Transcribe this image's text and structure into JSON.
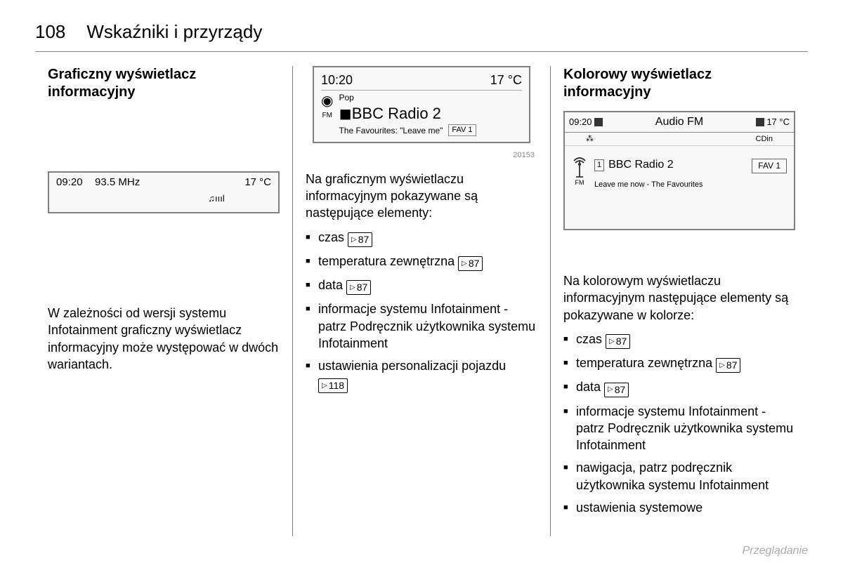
{
  "page": {
    "number": "108",
    "chapter": "Wskaźniki i przyrządy",
    "footer": "Przeglądanie"
  },
  "col1": {
    "heading": "Graficzny wyświetlacz informacyjny",
    "display": {
      "time": "09:20",
      "freq": "93.5 MHz",
      "temp": "17 °C",
      "icons": "♫ıııl"
    },
    "para": "W zależności od wersji systemu Infotainment graficzny wyświetlacz informacyjny może występować w dwóch wariantach."
  },
  "col2": {
    "display": {
      "time": "10:20",
      "temp": "17 °C",
      "band": "FM",
      "genre": "Pop",
      "station_prefix": "◼",
      "station": "BBC Radio 2",
      "track": "The Favourites: \"Leave me\"",
      "fav": "FAV 1",
      "imgnum": "20153"
    },
    "intro": "Na graficznym wyświetlaczu informacyjnym pokazywane są następujące elementy:",
    "items": [
      {
        "t": "czas ",
        "ref": "87"
      },
      {
        "t": "temperatura zewnętrzna ",
        "ref": "87"
      },
      {
        "t": "data ",
        "ref": "87"
      },
      {
        "t": "informacje systemu Infotainment - patrz Podręcznik użytkownika systemu Infotainment"
      },
      {
        "t": "ustawienia personalizacji pojazdu ",
        "ref": "118"
      }
    ]
  },
  "col3": {
    "heading": "Kolorowy wyświetlacz informacyjny",
    "display": {
      "time": "09:20",
      "title": "Audio FM",
      "temp": "17 °C",
      "sub_l": "⁂",
      "sub_r": "CDin",
      "band": "FM",
      "preset": "1",
      "station": "BBC Radio 2",
      "fav": "FAV 1",
      "song": "Leave me now - The Favourites"
    },
    "intro": "Na kolorowym wyświetlaczu informacyjnym następujące elementy są pokazywane w kolorze:",
    "items": [
      {
        "t": "czas ",
        "ref": "87"
      },
      {
        "t": "temperatura zewnętrzna ",
        "ref": "87"
      },
      {
        "t": "data ",
        "ref": "87"
      },
      {
        "t": "informacje systemu Infotainment - patrz Podręcznik użytkownika systemu Infotainment"
      },
      {
        "t": "nawigacja, patrz podręcznik użytkownika systemu Infotainment"
      },
      {
        "t": "ustawienia systemowe"
      }
    ]
  }
}
